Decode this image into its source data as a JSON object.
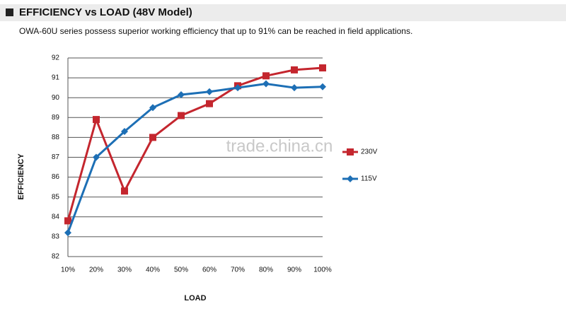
{
  "chart_data": {
    "type": "line",
    "title": "EFFICIENCY vs LOAD (48V Model)",
    "subtitle": "OWA-60U series possess superior working efficiency that up to 91% can be reached in field applications.",
    "x_label": "LOAD",
    "y_label": "EFFICIENCY",
    "watermark": "trade.china.cn",
    "categories": [
      "10%",
      "20%",
      "30%",
      "40%",
      "50%",
      "60%",
      "70%",
      "80%",
      "90%",
      "100%"
    ],
    "series": [
      {
        "name": "230V",
        "color": "#c4262e",
        "marker": "square",
        "values": [
          83.8,
          88.9,
          85.3,
          88.0,
          89.1,
          89.7,
          90.6,
          91.1,
          91.4,
          91.5
        ]
      },
      {
        "name": "115V",
        "color": "#1d6fb5",
        "marker": "diamond",
        "values": [
          83.2,
          87.0,
          88.3,
          89.5,
          90.15,
          90.3,
          90.5,
          90.7,
          90.5,
          90.55
        ]
      }
    ],
    "ylim": [
      82,
      92
    ],
    "yticks": [
      82,
      83,
      84,
      85,
      86,
      87,
      88,
      89,
      90,
      91,
      92
    ],
    "grid": true,
    "legend": "right"
  }
}
